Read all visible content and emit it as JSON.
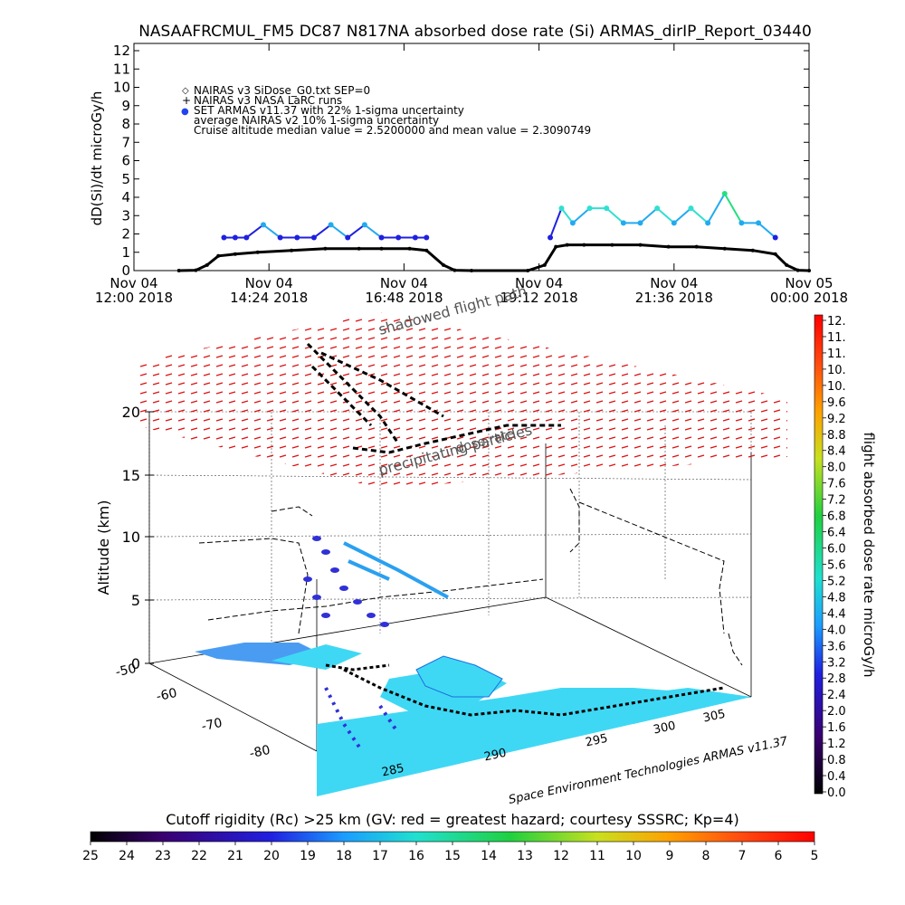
{
  "chart_data": [
    {
      "type": "scatter",
      "title": "NASAAFRCMUL_FM5 DC87 N817NA absorbed dose rate (Si) ARMAS_dirIP_Report_03440",
      "ylabel": "dD(Si)/dt microGy/h",
      "ylim": [
        0,
        12
      ],
      "y_ticks": [
        "0",
        "1",
        "2",
        "3",
        "4",
        "5",
        "6",
        "7",
        "8",
        "9",
        "10",
        "11",
        "12"
      ],
      "x_ticks": [
        {
          "line1": "Nov 04",
          "line2": "12:00 2018"
        },
        {
          "line1": "Nov 04",
          "line2": "14:24 2018"
        },
        {
          "line1": "Nov 04",
          "line2": "16:48 2018"
        },
        {
          "line1": "Nov 04",
          "line2": "19:12 2018"
        },
        {
          "line1": "Nov 04",
          "line2": "21:36 2018"
        },
        {
          "line1": "Nov 05",
          "line2": "00:00 2018"
        }
      ],
      "legend": [
        {
          "symbol": "◇",
          "text": "NAIRAS v3 SiDose_G0.txt SEP=0"
        },
        {
          "symbol": "+",
          "text": "NAIRAS v3 NASA LaRC runs"
        },
        {
          "symbol": "●",
          "text": "SET ARMAS v11.37 with 22% 1-sigma uncertainty",
          "color": "#2244ee"
        },
        {
          "symbol": "",
          "text": "average NAIRAS v2 10% 1-sigma uncertainty"
        },
        {
          "symbol": "",
          "text": "Cruise altitude median value = 2.5200000 and mean value = 2.3090749"
        }
      ],
      "series": [
        {
          "name": "NAIRAS v3 SiDose_G0.txt SEP=0",
          "x_hours": [
            12.8,
            13.1,
            13.3,
            13.5,
            13.8,
            14.2,
            14.8,
            15.4,
            16.0,
            16.4,
            16.9,
            17.2,
            17.5,
            17.7,
            18.0,
            19.0,
            19.3,
            19.5,
            19.7,
            20.0,
            20.5,
            21.0,
            21.5,
            22.0,
            22.5,
            23.0,
            23.4,
            23.6,
            23.8,
            24.0
          ],
          "values": [
            0,
            0.02,
            0.3,
            0.8,
            0.9,
            1.0,
            1.1,
            1.2,
            1.2,
            1.2,
            1.2,
            1.1,
            0.3,
            0.02,
            0,
            0,
            0.3,
            1.3,
            1.4,
            1.4,
            1.4,
            1.4,
            1.3,
            1.3,
            1.2,
            1.1,
            0.9,
            0.3,
            0.02,
            0
          ]
        },
        {
          "name": "SET ARMAS v11.37",
          "x_hours": [
            13.6,
            13.8,
            14.0,
            14.3,
            14.6,
            14.9,
            15.2,
            15.5,
            15.8,
            16.1,
            16.4,
            16.7,
            17.0,
            17.2,
            19.4,
            19.6,
            19.8,
            20.1,
            20.4,
            20.7,
            21.0,
            21.3,
            21.6,
            21.9,
            22.2,
            22.5,
            22.8,
            23.1,
            23.4
          ],
          "values": [
            1.8,
            1.8,
            1.8,
            2.5,
            1.8,
            1.8,
            1.8,
            2.5,
            1.8,
            2.5,
            1.8,
            1.8,
            1.8,
            1.8,
            1.8,
            3.4,
            2.6,
            3.4,
            3.4,
            2.6,
            2.6,
            3.4,
            2.6,
            3.4,
            2.6,
            4.2,
            2.6,
            2.6,
            1.8
          ]
        }
      ]
    },
    {
      "type": "surface3d",
      "zlabel": "Altitude (km)",
      "z_ticks": [
        "0",
        "5",
        "10",
        "15",
        "20"
      ],
      "lat_ticks": [
        "-50",
        "-60",
        "-70",
        "-80"
      ],
      "lon_ticks": [
        "285",
        "290",
        "295",
        "300",
        "305"
      ],
      "annotations": [
        "shadowed flight path",
        "precipitating particles",
        "dose rate"
      ],
      "credit": "Space Environment Technologies ARMAS v11.37",
      "colorbar_label": "flight absorbed dose rate microGy/h",
      "colorbar_ticks": [
        "12.",
        "11.",
        "11.",
        "10.",
        "10.",
        "9.6",
        "9.2",
        "8.8",
        "8.4",
        "8.0",
        "7.6",
        "7.2",
        "6.8",
        "6.4",
        "6.0",
        "5.6",
        "5.2",
        "4.8",
        "4.4",
        "4.0",
        "3.6",
        "3.2",
        "2.8",
        "2.4",
        "2.0",
        "1.6",
        "1.2",
        "0.8",
        "0.4",
        "0.0"
      ],
      "rigidity_label": "Cutoff rigidity (Rc) >25 km (GV: red = greatest hazard; courtesy SSSRC; Kp=4)",
      "rigidity_ticks": [
        "25",
        "24",
        "23",
        "22",
        "21",
        "20",
        "19",
        "18",
        "17",
        "16",
        "15",
        "14",
        "13",
        "12",
        "11",
        "10",
        "9",
        "8",
        "7",
        "6",
        "5"
      ]
    }
  ]
}
